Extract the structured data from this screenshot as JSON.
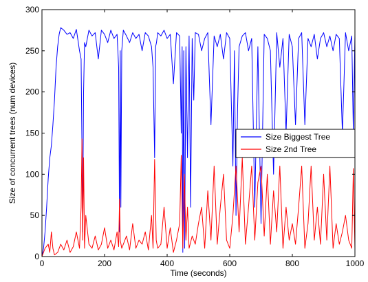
{
  "chart_data": {
    "type": "line",
    "xlabel": "Time (seconds)",
    "ylabel": "Size of concurrent trees (num devices)",
    "xlim": [
      0,
      1000
    ],
    "ylim": [
      0,
      300
    ],
    "x_ticks": [
      0,
      200,
      400,
      600,
      800,
      1000
    ],
    "y_ticks": [
      0,
      50,
      100,
      150,
      200,
      250,
      300
    ],
    "grid": false,
    "legend_position": "center-right",
    "series": [
      {
        "name": "Size Biggest Tree",
        "color": "#0000ff",
        "x": [
          0,
          5,
          10,
          15,
          20,
          25,
          30,
          35,
          40,
          45,
          50,
          55,
          60,
          70,
          80,
          90,
          100,
          110,
          120,
          125,
          128,
          130,
          133,
          136,
          140,
          150,
          160,
          170,
          180,
          190,
          200,
          210,
          220,
          230,
          240,
          245,
          248,
          250,
          252,
          255,
          260,
          270,
          280,
          290,
          300,
          310,
          320,
          330,
          340,
          350,
          355,
          360,
          363,
          366,
          370,
          380,
          390,
          400,
          410,
          420,
          430,
          440,
          445,
          448,
          450,
          453,
          456,
          460,
          465,
          470,
          475,
          480,
          485,
          490,
          500,
          510,
          520,
          530,
          540,
          550,
          560,
          570,
          580,
          590,
          600,
          610,
          615,
          620,
          625,
          630,
          640,
          650,
          660,
          670,
          680,
          690,
          700,
          710,
          720,
          730,
          740,
          750,
          760,
          770,
          780,
          790,
          800,
          810,
          820,
          830,
          840,
          850,
          860,
          870,
          880,
          890,
          900,
          910,
          920,
          930,
          940,
          950,
          960,
          970,
          980,
          990,
          995,
          1000
        ],
        "values": [
          0,
          10,
          30,
          60,
          95,
          120,
          135,
          160,
          190,
          230,
          255,
          270,
          278,
          275,
          270,
          272,
          265,
          276,
          250,
          240,
          130,
          30,
          200,
          260,
          255,
          275,
          268,
          272,
          240,
          275,
          270,
          260,
          275,
          265,
          270,
          230,
          30,
          250,
          60,
          250,
          275,
          268,
          260,
          272,
          265,
          270,
          250,
          272,
          268,
          255,
          230,
          120,
          255,
          260,
          272,
          268,
          275,
          265,
          270,
          210,
          272,
          268,
          150,
          255,
          5,
          250,
          10,
          255,
          120,
          268,
          60,
          265,
          190,
          272,
          270,
          250,
          265,
          272,
          160,
          268,
          255,
          270,
          240,
          272,
          265,
          110,
          250,
          50,
          180,
          255,
          268,
          272,
          250,
          265,
          60,
          255,
          40,
          270,
          265,
          250,
          100,
          272,
          230,
          265,
          150,
          270,
          255,
          160,
          265,
          272,
          160,
          265,
          255,
          270,
          240,
          265,
          272,
          255,
          268,
          250,
          270,
          265,
          150,
          272,
          250,
          268,
          150,
          270
        ]
      },
      {
        "name": "Size 2nd Tree",
        "color": "#ff0000",
        "x": [
          0,
          10,
          20,
          25,
          30,
          35,
          40,
          50,
          60,
          70,
          80,
          90,
          100,
          110,
          120,
          125,
          128,
          130,
          133,
          136,
          140,
          150,
          160,
          170,
          180,
          190,
          200,
          210,
          220,
          230,
          240,
          245,
          248,
          250,
          255,
          260,
          270,
          280,
          290,
          300,
          310,
          320,
          330,
          340,
          350,
          355,
          360,
          365,
          370,
          380,
          390,
          400,
          410,
          420,
          430,
          440,
          445,
          450,
          455,
          460,
          465,
          470,
          480,
          490,
          500,
          510,
          520,
          530,
          540,
          550,
          560,
          570,
          580,
          590,
          600,
          610,
          620,
          630,
          640,
          650,
          660,
          670,
          680,
          690,
          700,
          710,
          720,
          730,
          740,
          750,
          760,
          770,
          780,
          790,
          800,
          810,
          820,
          830,
          840,
          850,
          860,
          870,
          880,
          890,
          900,
          910,
          920,
          930,
          940,
          950,
          960,
          970,
          980,
          990,
          995,
          1000
        ],
        "values": [
          0,
          10,
          15,
          5,
          30,
          10,
          2,
          5,
          15,
          8,
          20,
          5,
          12,
          30,
          10,
          60,
          143,
          20,
          120,
          10,
          50,
          15,
          10,
          25,
          8,
          15,
          35,
          10,
          20,
          8,
          30,
          12,
          70,
          20,
          10,
          15,
          25,
          8,
          40,
          10,
          20,
          15,
          30,
          8,
          50,
          10,
          118,
          20,
          10,
          15,
          60,
          10,
          35,
          5,
          20,
          40,
          123,
          10,
          100,
          20,
          60,
          10,
          25,
          15,
          40,
          60,
          10,
          80,
          20,
          110,
          15,
          60,
          100,
          20,
          10,
          50,
          110,
          30,
          120,
          15,
          60,
          110,
          20,
          90,
          110,
          25,
          100,
          15,
          80,
          30,
          110,
          10,
          60,
          20,
          40,
          15,
          60,
          110,
          10,
          40,
          110,
          20,
          60,
          15,
          100,
          20,
          110,
          10,
          40,
          15,
          30,
          50,
          20,
          10,
          107,
          10
        ]
      }
    ]
  }
}
